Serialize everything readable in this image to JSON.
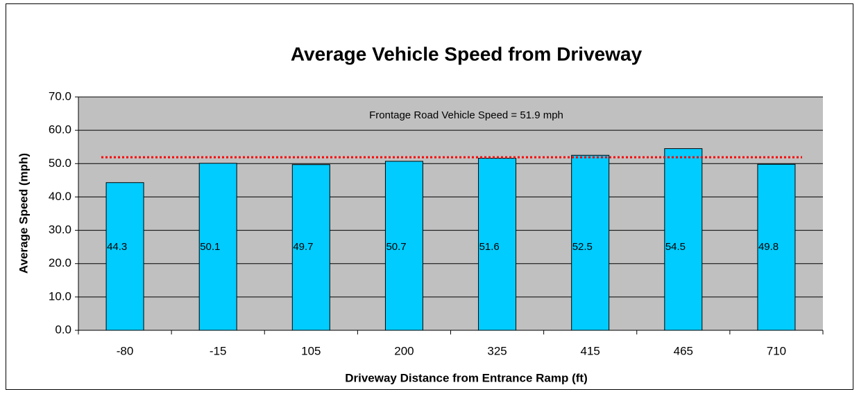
{
  "chart_data": {
    "type": "bar",
    "title": "Average Vehicle Speed from Driveway",
    "xlabel": "Driveway Distance from Entrance Ramp (ft)",
    "ylabel": "Average Speed (mph)",
    "categories": [
      "-80",
      "-15",
      "105",
      "200",
      "325",
      "415",
      "465",
      "710"
    ],
    "values": [
      44.3,
      50.1,
      49.7,
      50.7,
      51.6,
      52.5,
      54.5,
      49.8
    ],
    "color": "#00ccff",
    "ylim": [
      0,
      70
    ],
    "yticks": [
      {
        "value": 0,
        "label": "0.0"
      },
      {
        "value": 10,
        "label": "10.0"
      },
      {
        "value": 20,
        "label": "20.0"
      },
      {
        "value": 30,
        "label": "30.0"
      },
      {
        "value": 40,
        "label": "40.0"
      },
      {
        "value": 50,
        "label": "50.0"
      },
      {
        "value": 60,
        "label": "60.0"
      },
      {
        "value": 70,
        "label": "70.0"
      }
    ],
    "grid": true,
    "reference_line": {
      "value": 51.9,
      "color": "#ff0000",
      "label": "Frontage Road Vehicle Speed = 51.9 mph"
    }
  }
}
